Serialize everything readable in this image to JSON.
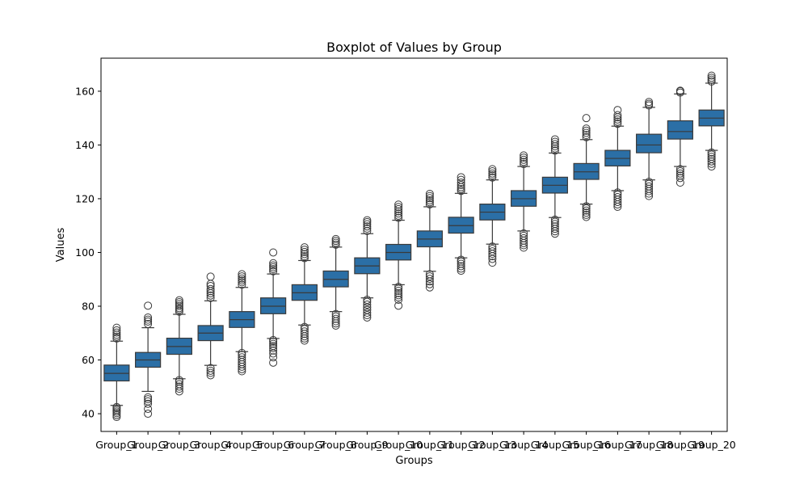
{
  "chart_data": {
    "type": "box",
    "title": "Boxplot of Values by Group",
    "xlabel": "Groups",
    "ylabel": "Values",
    "ylim": [
      33.4,
      172.3
    ],
    "yticks": [
      40,
      60,
      80,
      100,
      120,
      140,
      160
    ],
    "box_color": "#2b6fa6",
    "edge_color": "#3a3a3a",
    "categories": [
      "Group_1",
      "Group_2",
      "Group_3",
      "Group_4",
      "Group_5",
      "Group_6",
      "Group_7",
      "Group_8",
      "Group_9",
      "Group_10",
      "Group_11",
      "Group_12",
      "Group_13",
      "Group_14",
      "Group_15",
      "Group_16",
      "Group_17",
      "Group_18",
      "Group_19",
      "Group_20"
    ],
    "series": [
      {
        "q1": 52.2,
        "median": 55.0,
        "q3": 58.1,
        "whisker_low": 43.1,
        "whisker_high": 67.0,
        "outliers": [
          38.8,
          39.5,
          40.2,
          40.8,
          41.4,
          42.0,
          42.5,
          68.0,
          68.7,
          69.4,
          70.2,
          71.0,
          72.0
        ]
      },
      {
        "q1": 57.3,
        "median": 60.0,
        "q3": 62.8,
        "whisker_low": 48.3,
        "whisker_high": 72.0,
        "outliers": [
          40.0,
          41.8,
          43.7,
          44.6,
          45.4,
          46.1,
          73.4,
          74.3,
          75.0,
          75.8,
          80.2
        ]
      },
      {
        "q1": 62.1,
        "median": 65.0,
        "q3": 68.1,
        "whisker_low": 53.0,
        "whisker_high": 77.0,
        "outliers": [
          48.3,
          49.3,
          50.1,
          51.0,
          51.9,
          52.5,
          78.0,
          78.7,
          79.3,
          80.1,
          80.8,
          81.5,
          82.2
        ]
      },
      {
        "q1": 67.2,
        "median": 70.0,
        "q3": 72.8,
        "whisker_low": 58.0,
        "whisker_high": 82.0,
        "outliers": [
          54.3,
          55.2,
          56.0,
          57.0,
          83.1,
          84.0,
          84.8,
          85.6,
          86.4,
          87.5,
          88.3,
          91.0
        ]
      },
      {
        "q1": 72.1,
        "median": 75.0,
        "q3": 78.0,
        "whisker_low": 63.1,
        "whisker_high": 87.0,
        "outliers": [
          55.8,
          56.6,
          57.5,
          58.4,
          59.2,
          60.1,
          61.0,
          61.9,
          62.6,
          88.0,
          88.9,
          89.6,
          90.3,
          91.1,
          91.9
        ]
      },
      {
        "q1": 77.2,
        "median": 80.0,
        "q3": 83.1,
        "whisker_low": 68.0,
        "whisker_high": 92.0,
        "outliers": [
          59.0,
          61.0,
          62.4,
          63.5,
          64.4,
          65.2,
          66.0,
          66.8,
          67.4,
          93.0,
          93.8,
          94.5,
          95.2,
          96.0,
          100.0
        ]
      },
      {
        "q1": 82.2,
        "median": 85.0,
        "q3": 88.0,
        "whisker_low": 73.0,
        "whisker_high": 97.0,
        "outliers": [
          67.2,
          68.0,
          68.8,
          69.7,
          70.6,
          71.5,
          72.3,
          97.9,
          98.6,
          99.4,
          100.2,
          101.0,
          101.9
        ]
      },
      {
        "q1": 87.2,
        "median": 90.0,
        "q3": 93.1,
        "whisker_low": 78.0,
        "whisker_high": 102.0,
        "outliers": [
          72.8,
          73.6,
          74.4,
          75.3,
          76.2,
          77.1,
          102.9,
          103.6,
          104.3,
          105.0
        ]
      },
      {
        "q1": 92.1,
        "median": 95.0,
        "q3": 98.0,
        "whisker_low": 83.1,
        "whisker_high": 107.0,
        "outliers": [
          75.8,
          76.7,
          77.6,
          78.6,
          79.6,
          80.6,
          81.6,
          82.4,
          108.0,
          108.9,
          109.7,
          110.5,
          111.3,
          112.0
        ]
      },
      {
        "q1": 97.2,
        "median": 100.0,
        "q3": 103.0,
        "whisker_low": 88.0,
        "whisker_high": 112.0,
        "outliers": [
          80.2,
          82.4,
          83.3,
          84.1,
          84.9,
          85.7,
          86.5,
          87.2,
          112.9,
          113.7,
          114.5,
          115.3,
          116.1,
          116.9,
          117.8
        ]
      },
      {
        "q1": 102.1,
        "median": 105.0,
        "q3": 108.0,
        "whisker_low": 93.0,
        "whisker_high": 117.0,
        "outliers": [
          87.0,
          88.2,
          89.2,
          90.2,
          91.1,
          91.9,
          117.9,
          118.7,
          119.4,
          120.2,
          121.0,
          121.8
        ]
      },
      {
        "q1": 107.2,
        "median": 110.0,
        "q3": 113.1,
        "whisker_low": 98.0,
        "whisker_high": 122.0,
        "outliers": [
          93.2,
          94.0,
          94.9,
          95.8,
          96.6,
          97.3,
          122.9,
          123.6,
          124.3,
          125.1,
          126.0,
          127.0,
          128.0
        ]
      },
      {
        "q1": 112.1,
        "median": 115.0,
        "q3": 118.0,
        "whisker_low": 103.1,
        "whisker_high": 127.0,
        "outliers": [
          96.2,
          97.6,
          98.6,
          99.5,
          100.4,
          101.3,
          102.2,
          127.9,
          128.7,
          129.4,
          130.2,
          131.0
        ]
      },
      {
        "q1": 117.2,
        "median": 120.0,
        "q3": 123.0,
        "whisker_low": 108.0,
        "whisker_high": 132.0,
        "outliers": [
          101.8,
          102.7,
          103.5,
          104.4,
          105.3,
          106.2,
          107.1,
          132.9,
          133.7,
          134.5,
          135.3,
          136.1
        ]
      },
      {
        "q1": 122.1,
        "median": 125.0,
        "q3": 128.0,
        "whisker_low": 113.0,
        "whisker_high": 137.0,
        "outliers": [
          107.0,
          107.9,
          108.8,
          109.7,
          110.6,
          111.4,
          112.2,
          137.9,
          138.7,
          139.5,
          140.3,
          141.2,
          142.1
        ]
      },
      {
        "q1": 127.2,
        "median": 130.0,
        "q3": 133.1,
        "whisker_low": 118.0,
        "whisker_high": 142.0,
        "outliers": [
          113.2,
          114.0,
          114.8,
          115.6,
          116.4,
          117.2,
          142.9,
          143.7,
          144.5,
          145.3,
          146.1,
          150.0
        ]
      },
      {
        "q1": 132.2,
        "median": 135.0,
        "q3": 138.0,
        "whisker_low": 123.0,
        "whisker_high": 147.0,
        "outliers": [
          117.0,
          117.9,
          118.8,
          119.7,
          120.6,
          121.5,
          122.3,
          147.9,
          148.7,
          149.5,
          150.3,
          151.1,
          153.0
        ]
      },
      {
        "q1": 137.1,
        "median": 140.0,
        "q3": 144.0,
        "whisker_low": 127.0,
        "whisker_high": 154.0,
        "outliers": [
          121.0,
          121.9,
          122.8,
          123.7,
          124.6,
          125.5,
          126.3,
          154.7,
          155.3,
          156.0
        ]
      },
      {
        "q1": 142.2,
        "median": 145.0,
        "q3": 149.0,
        "whisker_low": 132.0,
        "whisker_high": 159.0,
        "outliers": [
          126.0,
          127.7,
          128.6,
          129.4,
          130.2,
          131.0,
          159.5,
          160.0,
          160.2
        ]
      },
      {
        "q1": 147.1,
        "median": 150.0,
        "q3": 153.0,
        "whisker_low": 138.0,
        "whisker_high": 163.0,
        "outliers": [
          132.0,
          133.0,
          133.9,
          134.8,
          135.6,
          136.4,
          137.2,
          163.6,
          164.3,
          165.0,
          165.8
        ]
      }
    ]
  }
}
